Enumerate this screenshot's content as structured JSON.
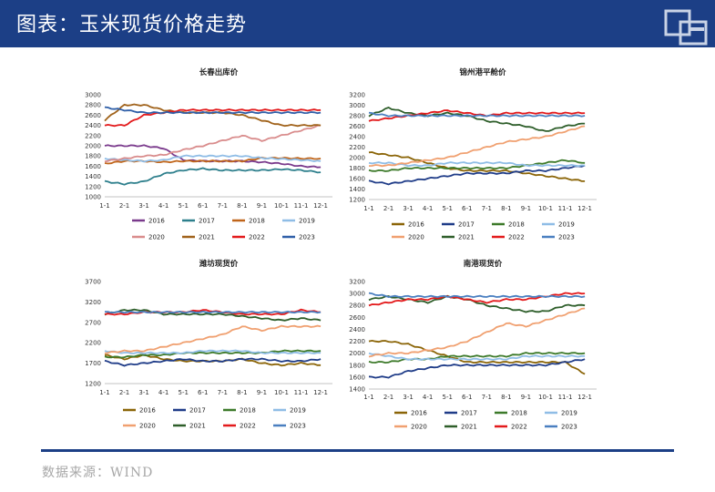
{
  "header": {
    "title": "图表：玉米现货价格走势"
  },
  "footer": {
    "source": "数据来源：WIND"
  },
  "colors": {
    "header_bg": "#1c3f86",
    "2016": "#8b6508",
    "2017": "#1f3c88",
    "2018": "#3d7a2a",
    "2019": "#8fbde6",
    "2020": "#f0a070",
    "2021": "#2e5e2a",
    "2022": "#e31a1c",
    "2023": "#4a7fc0"
  },
  "chart_data": [
    {
      "type": "line",
      "title": "长春出库价",
      "x_ticks": [
        "1-1",
        "2-1",
        "3-1",
        "4-1",
        "5-1",
        "6-1",
        "7-1",
        "8-1",
        "9-1",
        "10-1",
        "11-1",
        "12-1"
      ],
      "y_ticks": [
        1000,
        1200,
        1400,
        1600,
        1800,
        2000,
        2200,
        2400,
        2600,
        2800,
        3000
      ],
      "ylim": [
        1000,
        3000
      ],
      "legend": [
        "2016",
        "2017",
        "2018",
        "2019",
        "2020",
        "2021",
        "2022",
        "2023"
      ],
      "legend_colors": [
        "#7a3a8c",
        "#2d7f8c",
        "#c0651a",
        "#8fbde6",
        "#d98c8c",
        "#a0621a",
        "#e31a1c",
        "#2f5fa8"
      ],
      "series": [
        {
          "name": "2016",
          "values": [
            2000,
            2000,
            2000,
            1950,
            1720,
            1700,
            1700,
            1700,
            1680,
            1650,
            1600,
            1580
          ]
        },
        {
          "name": "2017",
          "values": [
            1300,
            1250,
            1300,
            1450,
            1520,
            1550,
            1520,
            1520,
            1520,
            1540,
            1520,
            1480
          ]
        },
        {
          "name": "2018",
          "values": [
            1650,
            1700,
            1700,
            1680,
            1700,
            1700,
            1700,
            1700,
            1760,
            1760,
            1750,
            1750
          ]
        },
        {
          "name": "2019",
          "values": [
            1750,
            1720,
            1700,
            1720,
            1800,
            1800,
            1800,
            1800,
            1760,
            1740,
            1720,
            1700
          ]
        },
        {
          "name": "2020",
          "values": [
            1700,
            1750,
            1800,
            1820,
            1920,
            2000,
            2100,
            2200,
            2100,
            2200,
            2300,
            2400
          ]
        },
        {
          "name": "2021",
          "values": [
            2500,
            2800,
            2800,
            2700,
            2650,
            2650,
            2650,
            2600,
            2500,
            2400,
            2400,
            2400
          ]
        },
        {
          "name": "2022",
          "values": [
            2400,
            2400,
            2600,
            2650,
            2700,
            2700,
            2700,
            2700,
            2700,
            2700,
            2700,
            2700
          ]
        },
        {
          "name": "2023",
          "values": [
            2750,
            2700,
            2650,
            2650,
            2650,
            2650,
            2650,
            2650,
            2650,
            2650,
            2650,
            2650
          ]
        }
      ]
    },
    {
      "type": "line",
      "title": "锦州港平舱价",
      "x_ticks": [
        "1-1",
        "2-1",
        "3-1",
        "4-1",
        "5-1",
        "6-1",
        "7-1",
        "8-1",
        "9-1",
        "10-1",
        "11-1",
        "12-1"
      ],
      "y_ticks": [
        1200,
        1400,
        1600,
        1800,
        2000,
        2200,
        2400,
        2600,
        2800,
        3000,
        3200
      ],
      "ylim": [
        1200,
        3200
      ],
      "legend": [
        "2016",
        "2017",
        "2018",
        "2019",
        "2020",
        "2021",
        "2022",
        "2023"
      ],
      "legend_colors": [
        "#8b6508",
        "#1f3c88",
        "#3d7a2a",
        "#8fbde6",
        "#f0a070",
        "#2e5e2a",
        "#e31a1c",
        "#4a7fc0"
      ],
      "series": [
        {
          "name": "2016",
          "values": [
            2100,
            2050,
            2000,
            1900,
            1800,
            1750,
            1750,
            1750,
            1700,
            1650,
            1600,
            1550
          ]
        },
        {
          "name": "2017",
          "values": [
            1550,
            1500,
            1550,
            1600,
            1650,
            1700,
            1700,
            1700,
            1750,
            1750,
            1800,
            1850
          ]
        },
        {
          "name": "2018",
          "values": [
            1750,
            1750,
            1800,
            1800,
            1800,
            1800,
            1800,
            1800,
            1850,
            1900,
            1950,
            1900
          ]
        },
        {
          "name": "2019",
          "values": [
            1900,
            1900,
            1850,
            1850,
            1900,
            1900,
            1900,
            1900,
            1850,
            1850,
            1850,
            1850
          ]
        },
        {
          "name": "2020",
          "values": [
            1850,
            1850,
            1900,
            1950,
            2000,
            2100,
            2200,
            2300,
            2350,
            2400,
            2500,
            2600
          ]
        },
        {
          "name": "2021",
          "values": [
            2800,
            2950,
            2850,
            2800,
            2850,
            2800,
            2700,
            2650,
            2600,
            2500,
            2600,
            2650
          ]
        },
        {
          "name": "2022",
          "values": [
            2700,
            2750,
            2800,
            2850,
            2900,
            2850,
            2800,
            2850,
            2850,
            2850,
            2850,
            2850
          ]
        },
        {
          "name": "2023",
          "values": [
            2850,
            2800,
            2800,
            2800,
            2800,
            2800,
            2800,
            2800,
            2800,
            2800,
            2800,
            2800
          ]
        }
      ]
    },
    {
      "type": "line",
      "title": "潍坊现货价",
      "x_ticks": [
        "1-1",
        "2-1",
        "3-1",
        "4-1",
        "5-1",
        "6-1",
        "7-1",
        "8-1",
        "9-1",
        "10-1",
        "11-1",
        "12-1"
      ],
      "y_ticks": [
        1200,
        1700,
        2200,
        2700,
        3200,
        3700
      ],
      "ylim": [
        1200,
        3700
      ],
      "legend": [
        "2016",
        "2017",
        "2018",
        "2019",
        "2020",
        "2021",
        "2022",
        "2023"
      ],
      "legend_colors": [
        "#8b6508",
        "#1f3c88",
        "#3d7a2a",
        "#8fbde6",
        "#f0a070",
        "#2e5e2a",
        "#e31a1c",
        "#4a7fc0"
      ],
      "series": [
        {
          "name": "2016",
          "values": [
            1900,
            1800,
            1900,
            1800,
            1750,
            1750,
            1750,
            1800,
            1700,
            1650,
            1700,
            1650
          ]
        },
        {
          "name": "2017",
          "values": [
            1750,
            1650,
            1700,
            1750,
            1800,
            1750,
            1750,
            1800,
            1800,
            1750,
            1750,
            1800
          ]
        },
        {
          "name": "2018",
          "values": [
            1850,
            1850,
            1900,
            1900,
            1950,
            1950,
            1950,
            1950,
            1950,
            2000,
            2000,
            2000
          ]
        },
        {
          "name": "2019",
          "values": [
            2000,
            1950,
            1950,
            1950,
            1950,
            2000,
            2000,
            2000,
            1950,
            1950,
            1950,
            1950
          ]
        },
        {
          "name": "2020",
          "values": [
            1950,
            2000,
            2000,
            2100,
            2200,
            2300,
            2400,
            2600,
            2500,
            2600,
            2600,
            2600
          ]
        },
        {
          "name": "2021",
          "values": [
            2900,
            3000,
            3000,
            2900,
            2900,
            2900,
            2900,
            2850,
            2800,
            2750,
            2800,
            2750
          ]
        },
        {
          "name": "2022",
          "values": [
            2900,
            2900,
            2950,
            2950,
            2950,
            3000,
            2950,
            2900,
            2900,
            2900,
            3000,
            2950
          ]
        },
        {
          "name": "2023",
          "values": [
            2950,
            2950,
            2950,
            2950,
            2950,
            2950,
            2950,
            2950,
            2950,
            2950,
            2950,
            2950
          ]
        }
      ]
    },
    {
      "type": "line",
      "title": "南港现货价",
      "x_ticks": [
        "1-1",
        "2-1",
        "3-1",
        "4-1",
        "5-1",
        "6-1",
        "7-1",
        "8-1",
        "9-1",
        "10-1",
        "11-1",
        "12-1"
      ],
      "y_ticks": [
        1400,
        1600,
        1800,
        2000,
        2200,
        2400,
        2600,
        2800,
        3000,
        3200
      ],
      "ylim": [
        1400,
        3200
      ],
      "legend": [
        "2016",
        "2017",
        "2018",
        "2019",
        "2020",
        "2021",
        "2022",
        "2023"
      ],
      "legend_colors": [
        "#8b6508",
        "#1f3c88",
        "#3d7a2a",
        "#8fbde6",
        "#f0a070",
        "#2e5e2a",
        "#e31a1c",
        "#4a7fc0"
      ],
      "series": [
        {
          "name": "2016",
          "values": [
            2200,
            2200,
            2150,
            2050,
            1950,
            1850,
            1850,
            1850,
            1850,
            1850,
            1850,
            1650
          ]
        },
        {
          "name": "2017",
          "values": [
            1600,
            1600,
            1700,
            1750,
            1800,
            1800,
            1800,
            1800,
            1800,
            1800,
            1850,
            1900
          ]
        },
        {
          "name": "2018",
          "values": [
            1850,
            1850,
            1900,
            1900,
            1950,
            1950,
            1950,
            1950,
            2000,
            2000,
            2000,
            2000
          ]
        },
        {
          "name": "2019",
          "values": [
            2000,
            1950,
            1900,
            1900,
            1900,
            1900,
            1900,
            1900,
            1950,
            1950,
            1950,
            1950
          ]
        },
        {
          "name": "2020",
          "values": [
            1950,
            2000,
            2000,
            2050,
            2100,
            2200,
            2350,
            2500,
            2450,
            2550,
            2650,
            2750
          ]
        },
        {
          "name": "2021",
          "values": [
            2900,
            2950,
            2900,
            2850,
            2950,
            2900,
            2800,
            2750,
            2700,
            2700,
            2800,
            2800
          ]
        },
        {
          "name": "2022",
          "values": [
            2800,
            2850,
            2900,
            2900,
            2950,
            2900,
            2850,
            2900,
            2900,
            2950,
            3000,
            3000
          ]
        },
        {
          "name": "2023",
          "values": [
            3000,
            2950,
            2950,
            2950,
            2950,
            2950,
            2950,
            2950,
            2950,
            2950,
            2950,
            2950
          ]
        }
      ]
    }
  ]
}
